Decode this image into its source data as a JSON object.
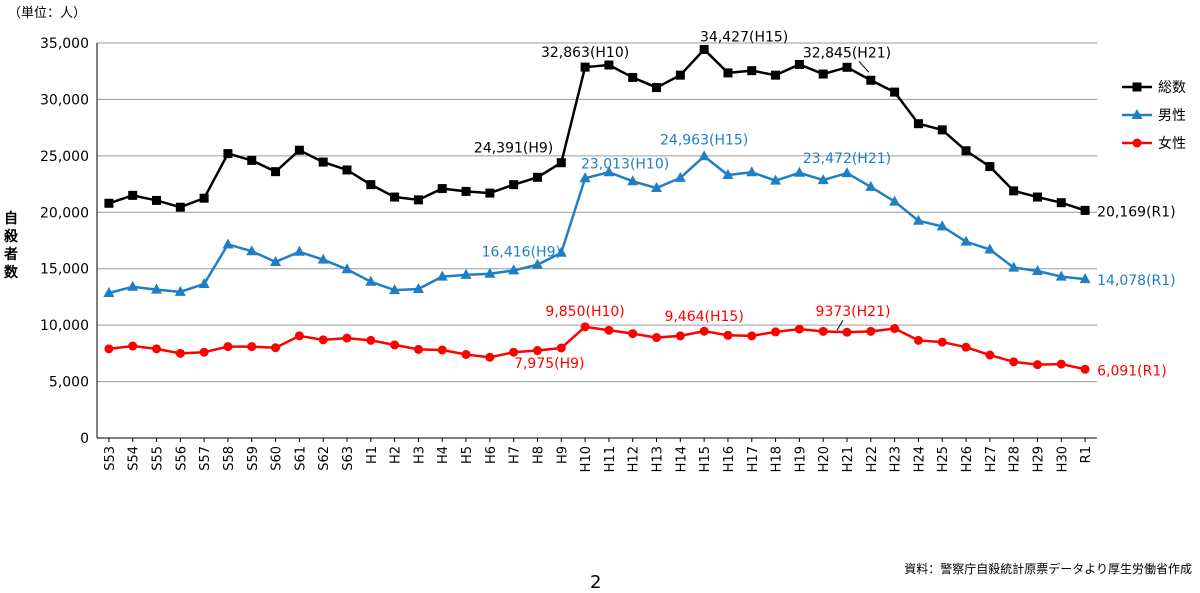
{
  "chart_data": {
    "type": "line",
    "unit_label": "（単位：人）",
    "ylabel": "自殺者数",
    "ylim": [
      0,
      35000
    ],
    "yticks": [
      "0",
      "5,000",
      "10,000",
      "15,000",
      "20,000",
      "25,000",
      "30,000",
      "35,000"
    ],
    "ytick_values": [
      0,
      5000,
      10000,
      15000,
      20000,
      25000,
      30000,
      35000
    ],
    "grid": true,
    "legend_position": "right",
    "categories": [
      "S53",
      "S54",
      "S55",
      "S56",
      "S57",
      "S58",
      "S59",
      "S60",
      "S61",
      "S62",
      "S63",
      "H1",
      "H2",
      "H3",
      "H4",
      "H5",
      "H6",
      "H7",
      "H8",
      "H9",
      "H10",
      "H11",
      "H12",
      "H13",
      "H14",
      "H15",
      "H16",
      "H17",
      "H18",
      "H19",
      "H20",
      "H21",
      "H22",
      "H23",
      "H24",
      "H25",
      "H26",
      "H27",
      "H28",
      "H29",
      "H30",
      "R1"
    ],
    "series": [
      {
        "name": "総数",
        "color": "#000000",
        "marker": "square",
        "values": [
          20800,
          21500,
          21050,
          20450,
          21250,
          25200,
          24600,
          23600,
          25500,
          24450,
          23750,
          22450,
          21350,
          21100,
          22100,
          21850,
          21700,
          22450,
          23100,
          24391,
          32863,
          33050,
          31950,
          31050,
          32150,
          34427,
          32350,
          32550,
          32150,
          33100,
          32250,
          32845,
          31700,
          30650,
          27850,
          27300,
          25450,
          24050,
          21900,
          21350,
          20850,
          20169
        ]
      },
      {
        "name": "男性",
        "color": "#1f7fc4",
        "marker": "triangle",
        "values": [
          12850,
          13400,
          13150,
          12950,
          13650,
          17150,
          16550,
          15600,
          16500,
          15800,
          14950,
          13850,
          13100,
          13200,
          14300,
          14450,
          14550,
          14850,
          15350,
          16416,
          23013,
          23550,
          22750,
          22150,
          23050,
          24963,
          23300,
          23550,
          22800,
          23500,
          22850,
          23472,
          22250,
          20950,
          19250,
          18750,
          17400,
          16700,
          15100,
          14800,
          14300,
          14078
        ]
      },
      {
        "name": "女性",
        "color": "#ff0000",
        "marker": "circle",
        "values": [
          7900,
          8150,
          7900,
          7500,
          7600,
          8100,
          8100,
          8000,
          9050,
          8700,
          8850,
          8650,
          8250,
          7850,
          7800,
          7400,
          7150,
          7600,
          7750,
          7975,
          9850,
          9550,
          9250,
          8900,
          9050,
          9464,
          9100,
          9050,
          9400,
          9650,
          9450,
          9373,
          9450,
          9700,
          8650,
          8500,
          8050,
          7350,
          6750,
          6500,
          6550,
          6091
        ]
      }
    ],
    "annotations": [
      {
        "text": "32,863(H10)",
        "series": 0,
        "cat": "H10"
      },
      {
        "text": "34,427(H15)",
        "series": 0,
        "cat": "H15"
      },
      {
        "text": "32,845(H21)",
        "series": 0,
        "cat": "H21"
      },
      {
        "text": "24,391(H9)",
        "series": 0,
        "cat": "H9"
      },
      {
        "text": "20,169(R1)",
        "series": 0,
        "cat": "R1"
      },
      {
        "text": "23,013(H10)",
        "series": 1,
        "cat": "H10"
      },
      {
        "text": "24,963(H15)",
        "series": 1,
        "cat": "H15"
      },
      {
        "text": "23,472(H21)",
        "series": 1,
        "cat": "H21"
      },
      {
        "text": "16,416(H9)",
        "series": 1,
        "cat": "H9"
      },
      {
        "text": "14,078(R1)",
        "series": 1,
        "cat": "R1"
      },
      {
        "text": "9,850(H10)",
        "series": 2,
        "cat": "H10"
      },
      {
        "text": "9,464(H15)",
        "series": 2,
        "cat": "H15"
      },
      {
        "text": "9373(H21)",
        "series": 2,
        "cat": "H21"
      },
      {
        "text": "7,975(H9)",
        "series": 2,
        "cat": "H9"
      },
      {
        "text": "6,091(R1)",
        "series": 2,
        "cat": "R1"
      }
    ]
  },
  "source_note": "資料：警察庁自殺統計原票データより厚生労働省作成",
  "page_number": "2"
}
